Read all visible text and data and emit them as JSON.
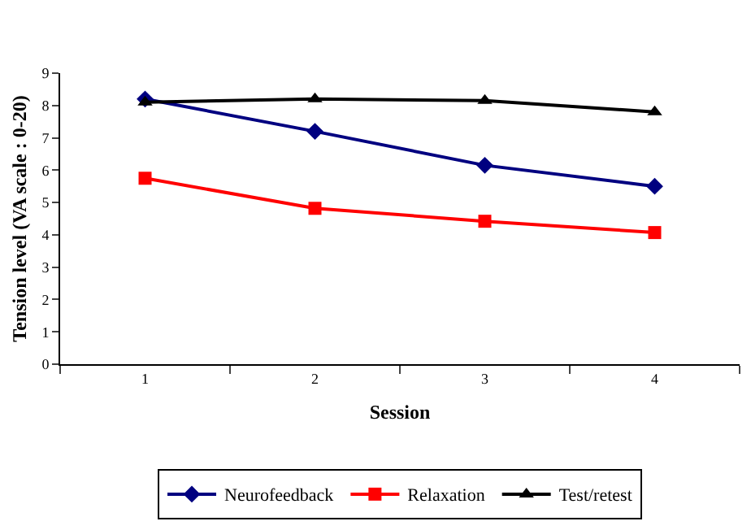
{
  "chart_data": {
    "type": "line",
    "xlabel": "Session",
    "ylabel": "Tension level (VA scale : 0-20)",
    "categories": [
      "1",
      "2",
      "3",
      "4"
    ],
    "ylim": [
      0,
      9
    ],
    "yticks": [
      0,
      1,
      2,
      3,
      4,
      5,
      6,
      7,
      8,
      9
    ],
    "grid": false,
    "legend": "bottom",
    "line_style": "solid",
    "series": [
      {
        "name": "Neurofeedback",
        "color": "#000080",
        "marker": "diamond",
        "values": [
          8.2,
          7.2,
          6.15,
          5.5
        ]
      },
      {
        "name": "Relaxation",
        "color": "#ff0000",
        "marker": "square",
        "values": [
          5.75,
          4.82,
          4.42,
          4.07
        ]
      },
      {
        "name": "Test/retest",
        "color": "#000000",
        "marker": "triangle",
        "values": [
          8.1,
          8.2,
          8.15,
          7.8
        ]
      }
    ]
  }
}
